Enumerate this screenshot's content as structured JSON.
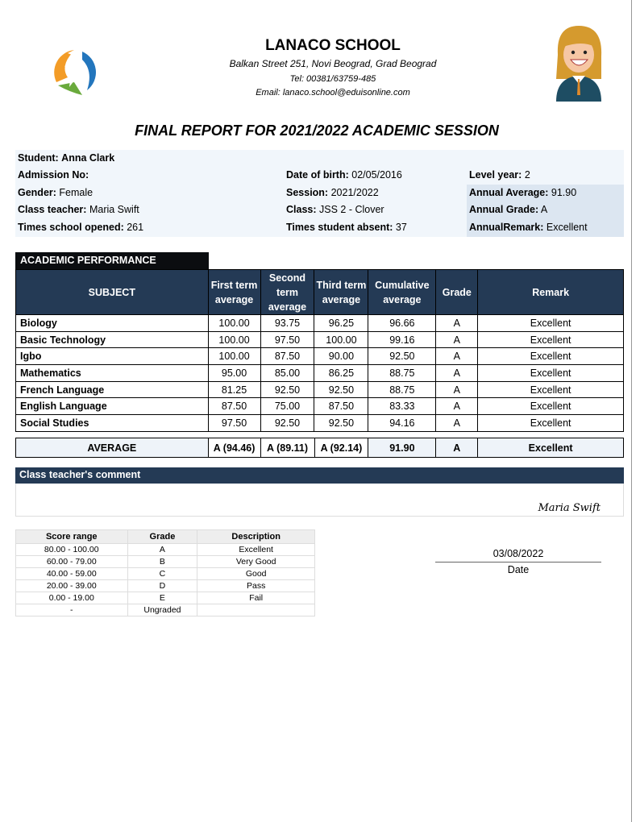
{
  "school": {
    "name": "LANACO SCHOOL",
    "address": "Balkan Street 251, Novi Beograd, Grad Beograd",
    "tel": "Tel: 00381/63759-485",
    "email": "Email: lanaco.school@eduisonline.com",
    "logo_icon": "school-logo-icon",
    "avatar_icon": "student-avatar-icon"
  },
  "report_title": "FINAL REPORT FOR 2021/2022 ACADEMIC SESSION",
  "info": {
    "student": {
      "label": "Student:",
      "value": "Anna Clark"
    },
    "admission": {
      "label": "Admission No:",
      "value": ""
    },
    "gender": {
      "label": "Gender:",
      "value": "Female"
    },
    "teacher": {
      "label": "Class teacher:",
      "value": "Maria Swift"
    },
    "opened": {
      "label": "Times school opened:",
      "value": "261"
    },
    "dob": {
      "label": "Date of birth:",
      "value": "02/05/2016"
    },
    "session": {
      "label": "Session:",
      "value": "2021/2022"
    },
    "class": {
      "label": "Class:",
      "value": "JSS 2 - Clover"
    },
    "absent": {
      "label": "Times student absent:",
      "value": "37"
    },
    "level": {
      "label": "Level year:",
      "value": "2"
    },
    "annual_avg": {
      "label": "Annual Average:",
      "value": "91.90"
    },
    "annual_grade": {
      "label": "Annual Grade:",
      "value": "A"
    },
    "annual_remark": {
      "label": "AnnualRemark:",
      "value": "Excellent"
    }
  },
  "performance": {
    "tab": "ACADEMIC PERFORMANCE",
    "headers": [
      "SUBJECT",
      "First term average",
      "Second term average",
      "Third term average",
      "Cumulative average",
      "Grade",
      "Remark"
    ],
    "rows": [
      [
        "Biology",
        "100.00",
        "93.75",
        "96.25",
        "96.66",
        "A",
        "Excellent"
      ],
      [
        "Basic Technology",
        "100.00",
        "97.50",
        "100.00",
        "99.16",
        "A",
        "Excellent"
      ],
      [
        "Igbo",
        "100.00",
        "87.50",
        "90.00",
        "92.50",
        "A",
        "Excellent"
      ],
      [
        "Mathematics",
        "95.00",
        "85.00",
        "86.25",
        "88.75",
        "A",
        "Excellent"
      ],
      [
        "French Language",
        "81.25",
        "92.50",
        "92.50",
        "88.75",
        "A",
        "Excellent"
      ],
      [
        "English Language",
        "87.50",
        "75.00",
        "87.50",
        "83.33",
        "A",
        "Excellent"
      ],
      [
        "Social Studies",
        "97.50",
        "92.50",
        "92.50",
        "94.16",
        "A",
        "Excellent"
      ]
    ],
    "average": [
      "AVERAGE",
      "A (94.46)",
      "A (89.11)",
      "A (92.14)",
      "91.90",
      "A",
      "Excellent"
    ]
  },
  "comment": {
    "title": "Class teacher's comment",
    "text": "",
    "signature": "Maria Swift"
  },
  "grading": {
    "headers": [
      "Score range",
      "Grade",
      "Description"
    ],
    "rows": [
      [
        "80.00 - 100.00",
        "A",
        "Excellent"
      ],
      [
        "60.00 - 79.00",
        "B",
        "Very Good"
      ],
      [
        "40.00 - 59.00",
        "C",
        "Good"
      ],
      [
        "20.00 - 39.00",
        "D",
        "Pass"
      ],
      [
        "0.00 - 19.00",
        "E",
        "Fail"
      ],
      [
        "-",
        "Ungraded",
        ""
      ]
    ]
  },
  "date": {
    "value": "03/08/2022",
    "label": "Date"
  },
  "colors": {
    "header_navy": "#243a55",
    "info_bg": "#f1f6fb",
    "info_shade": "#dce6f1"
  }
}
